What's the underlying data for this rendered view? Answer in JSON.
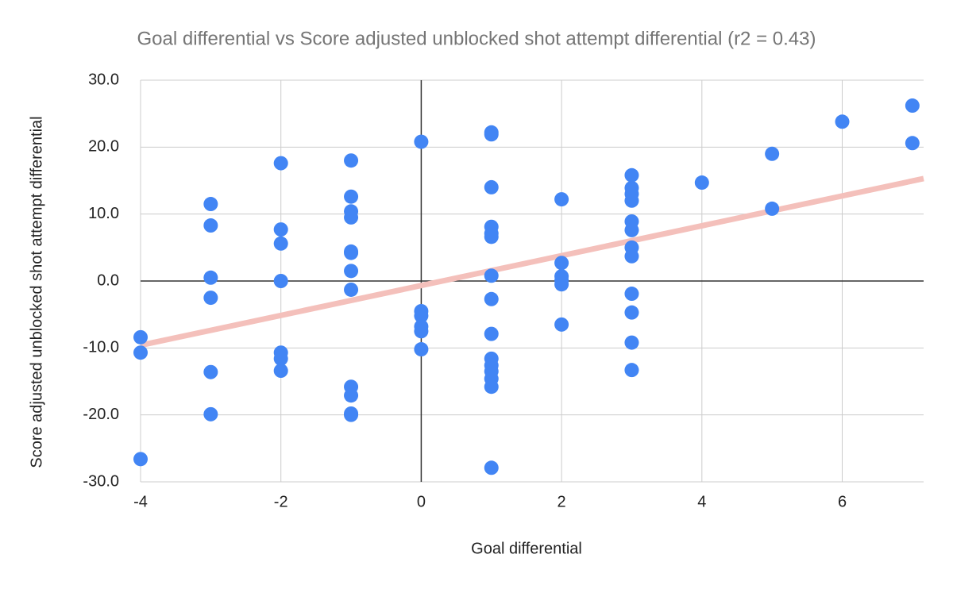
{
  "chart_data": {
    "type": "scatter",
    "title": "Goal differential vs Score adjusted unblocked shot attempt differential (r2 = 0.43)",
    "x_label": "Goal differential",
    "y_label": "Score adjusted unblocked shot attempt differential",
    "color": "#4285f4",
    "x": [
      -4,
      -4,
      -4,
      -3,
      -3,
      -3,
      -3,
      -3,
      -3,
      -2,
      -2,
      -2,
      -2,
      -2,
      -2,
      -2,
      -1,
      -1,
      -1,
      -1,
      -1,
      -1,
      -1,
      -1,
      -1,
      -1,
      -1,
      -1,
      0,
      0,
      0,
      0,
      0,
      0,
      1,
      1,
      1,
      1,
      1,
      1,
      1,
      1,
      1,
      1,
      1,
      1,
      1,
      1,
      1,
      2,
      2,
      2,
      2,
      2,
      2,
      3,
      3,
      3,
      3,
      3,
      3,
      3,
      3,
      3,
      3,
      3,
      3,
      4,
      5,
      5,
      6,
      7,
      7
    ],
    "y": [
      -8.4,
      -10.7,
      -26.6,
      11.5,
      8.3,
      0.5,
      -2.5,
      -13.6,
      -19.9,
      17.6,
      7.7,
      5.6,
      0.0,
      -10.7,
      -11.6,
      -13.4,
      18.0,
      12.6,
      10.4,
      9.5,
      4.4,
      4.2,
      1.5,
      -1.3,
      -15.8,
      -17.1,
      -19.8,
      -20.0,
      20.8,
      -4.5,
      -5.2,
      -6.8,
      -7.5,
      -10.2,
      22.2,
      21.9,
      14.0,
      8.1,
      7.1,
      6.6,
      0.8,
      -2.7,
      -7.9,
      -11.6,
      -12.6,
      -13.5,
      -14.6,
      -15.8,
      -27.9,
      12.2,
      2.7,
      0.7,
      0.1,
      -0.5,
      -6.5,
      15.8,
      13.9,
      13.0,
      12.0,
      8.9,
      7.6,
      5.0,
      3.7,
      -1.9,
      -4.7,
      -9.2,
      -13.3,
      14.7,
      19.0,
      10.8,
      23.8,
      26.2,
      20.6
    ],
    "trendline": {
      "color": "#f4c0bb",
      "x": [
        -4,
        7.16
      ],
      "y": [
        -9.6,
        15.3
      ]
    },
    "xlim": [
      -4,
      7.16
    ],
    "ylim": [
      -30,
      30
    ],
    "xticks": [
      -4,
      -2,
      0,
      2,
      4,
      6
    ],
    "yticks": [
      {
        "value": -30,
        "label": "-30.0"
      },
      {
        "value": -20,
        "label": "-20.0"
      },
      {
        "value": -10,
        "label": "-10.0"
      },
      {
        "value": 0,
        "label": "0.0"
      },
      {
        "value": 10,
        "label": "10.0"
      },
      {
        "value": 20,
        "label": "20.0"
      },
      {
        "value": 30,
        "label": "30.0"
      }
    ],
    "grid": true
  }
}
